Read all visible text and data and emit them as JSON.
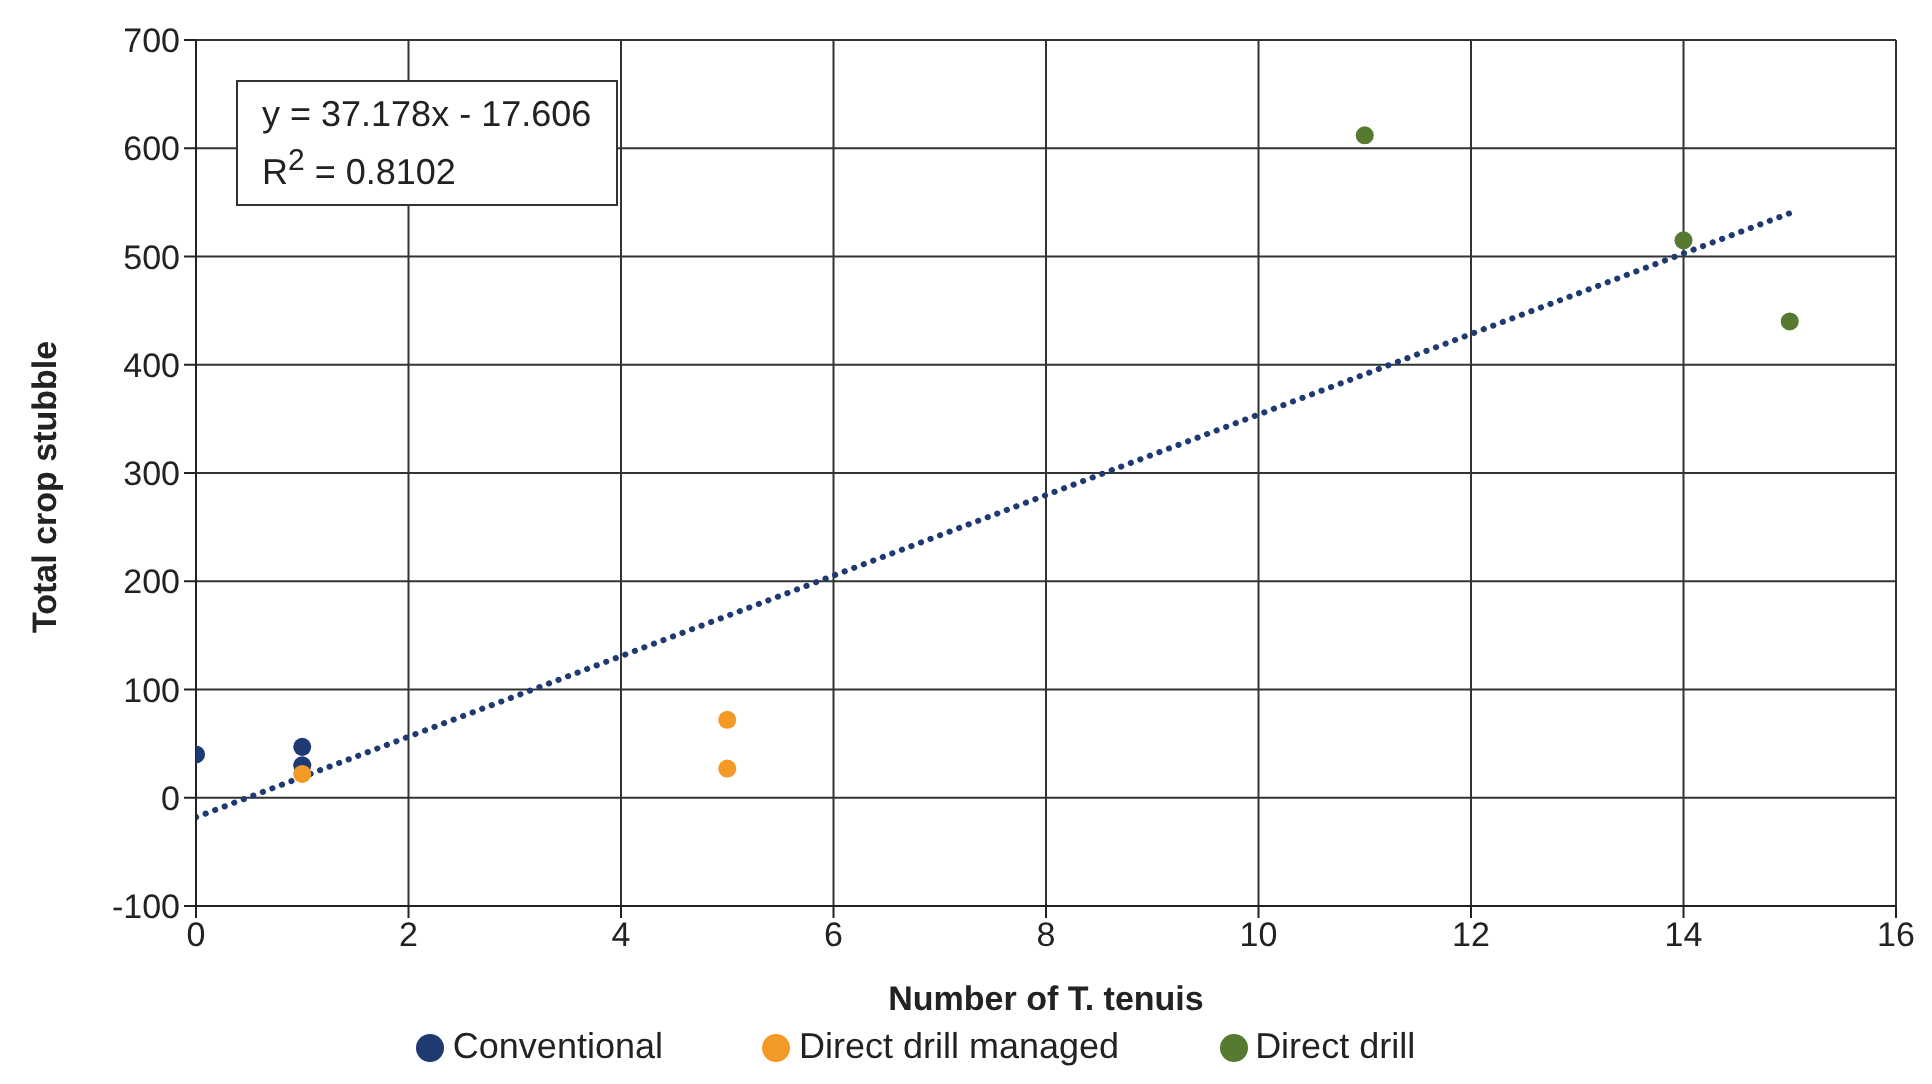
{
  "chart_data": {
    "type": "scatter",
    "xlabel": "Number of T. tenuis",
    "ylabel": "Total crop stubble",
    "xlim": [
      0,
      16
    ],
    "xticks": [
      0,
      2,
      4,
      6,
      8,
      10,
      12,
      14,
      16
    ],
    "ylim": [
      -100,
      700
    ],
    "yticks": [
      -100,
      0,
      100,
      200,
      300,
      400,
      500,
      600,
      700
    ],
    "grid": true,
    "legend": "bottom",
    "marker": "circle",
    "annotations": [
      "y = 37.178x - 17.606",
      "R$^{2}$ = 0.8102"
    ],
    "series": [
      {
        "name": "Conventional",
        "color": "#1f3a73",
        "x": [
          0,
          1,
          1
        ],
        "values": [
          40,
          47,
          30
        ]
      },
      {
        "name": "Direct drill managed",
        "color": "#f39a26",
        "x": [
          1,
          5,
          5
        ],
        "values": [
          22,
          72,
          27
        ]
      },
      {
        "name": "Direct drill",
        "color": "#567a2f",
        "x": [
          11,
          14,
          15
        ],
        "values": [
          612,
          515,
          440
        ]
      },
      {
        "type": "line",
        "color": "#1f3a73",
        "x": [
          0,
          15
        ],
        "values": [
          -18,
          540
        ],
        "line_style": "dotted",
        "marker": "none"
      }
    ]
  }
}
